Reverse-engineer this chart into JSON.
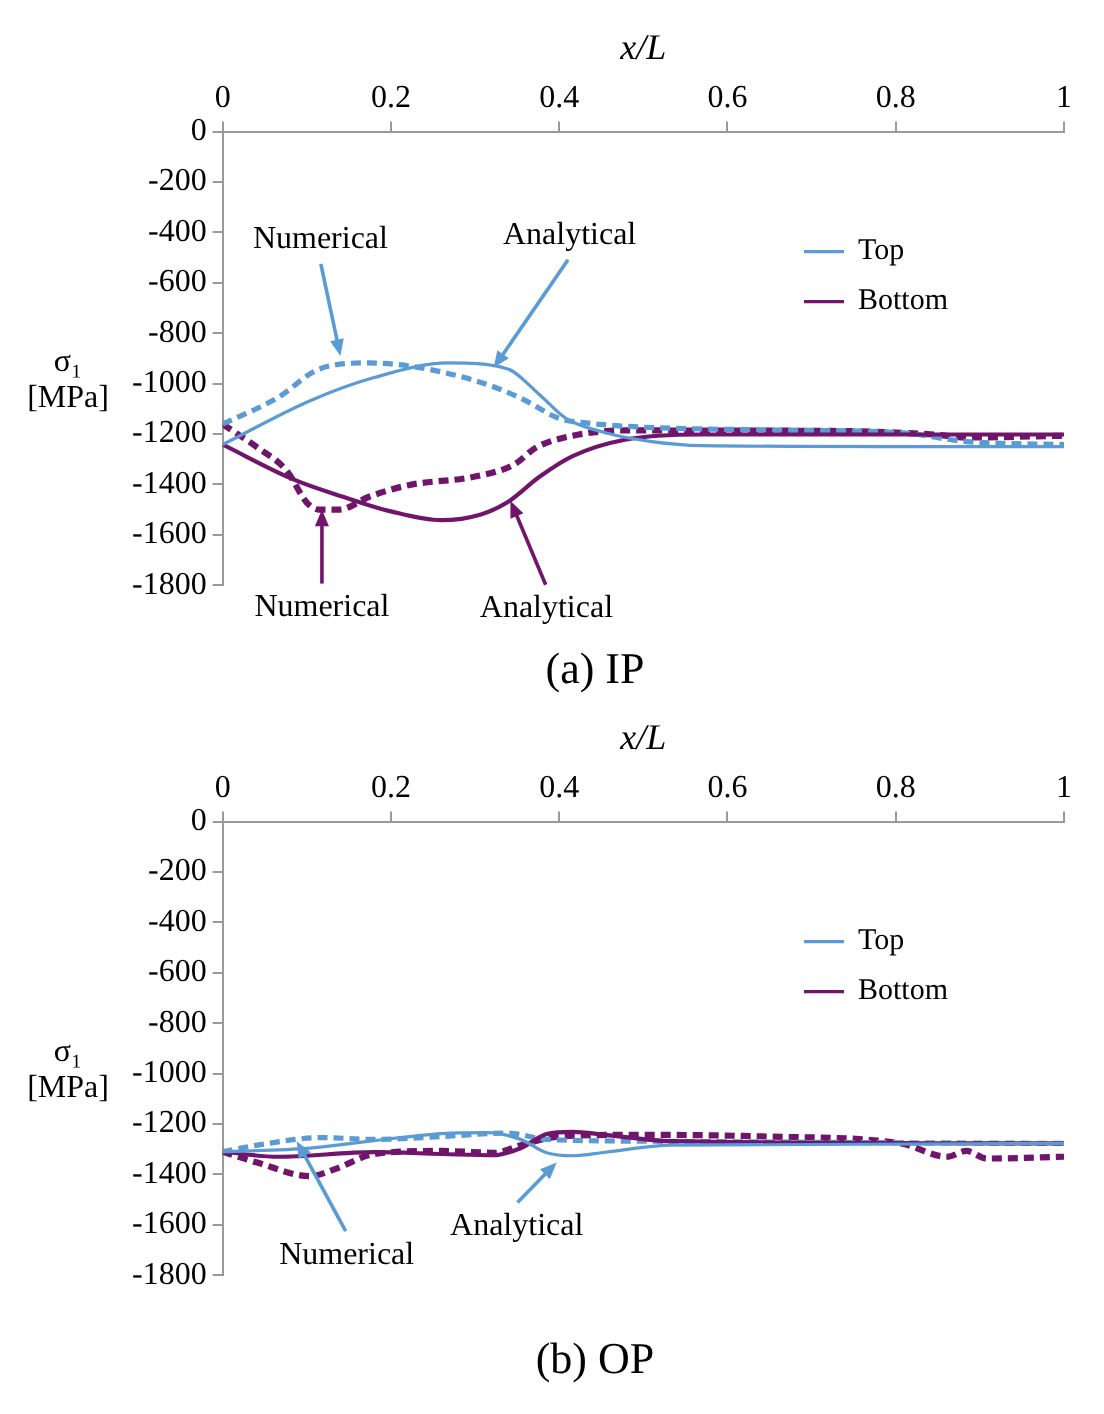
{
  "chart_data": [
    {
      "type": "line",
      "title": "(a) IP",
      "xlabel": "x/L",
      "ylabel": "σ₁ [MPa]",
      "xlim": [
        0,
        1
      ],
      "xticks": [
        0,
        0.2,
        0.4,
        0.6,
        0.8,
        1
      ],
      "ylim": [
        -1800,
        0
      ],
      "yticks": [
        0,
        -200,
        -400,
        -600,
        -800,
        -1000,
        -1200,
        -1400,
        -1600,
        -1800
      ],
      "grid": false,
      "legend": "top right",
      "marker": "none",
      "series": [
        {
          "name": "Top",
          "color": "#5b9bd5",
          "line_style": "solid",
          "x": [
            0,
            0.104,
            0.18,
            0.268,
            0.338,
            0.377,
            0.408,
            0.455,
            0.51,
            0.57,
            0.8,
            1
          ],
          "values": [
            -1242,
            -1068,
            -976,
            -918,
            -941,
            -1045,
            -1138,
            -1195,
            -1230,
            -1246,
            -1250,
            -1250
          ]
        },
        {
          "name": "Bottom",
          "color": "#70156b",
          "line_style": "solid",
          "x": [
            0,
            0.084,
            0.143,
            0.2,
            0.26,
            0.307,
            0.338,
            0.377,
            0.416,
            0.478,
            0.57,
            0.8,
            1
          ],
          "values": [
            -1242,
            -1380,
            -1449,
            -1507,
            -1542,
            -1519,
            -1472,
            -1369,
            -1288,
            -1223,
            -1202,
            -1202,
            -1202
          ]
        },
        {
          "color": "#5b9bd5",
          "line_style": "dashed",
          "x": [
            0,
            0.065,
            0.115,
            0.174,
            0.221,
            0.3,
            0.354,
            0.4,
            0.432,
            0.494,
            0.65,
            0.806,
            0.884,
            1
          ],
          "values": [
            -1161,
            -1057,
            -942,
            -918,
            -930,
            -988,
            -1057,
            -1138,
            -1156,
            -1172,
            -1184,
            -1195,
            -1230,
            -1242
          ]
        },
        {
          "color": "#70156b",
          "line_style": "dashed",
          "x": [
            0,
            0.041,
            0.076,
            0.1,
            0.115,
            0.139,
            0.174,
            0.221,
            0.3,
            0.346,
            0.373,
            0.416,
            0.478,
            0.728,
            0.845,
            0.884,
            1
          ],
          "values": [
            -1161,
            -1253,
            -1345,
            -1472,
            -1500,
            -1500,
            -1449,
            -1403,
            -1369,
            -1322,
            -1253,
            -1207,
            -1186,
            -1188,
            -1202,
            -1214,
            -1207
          ]
        }
      ],
      "annotations": [
        {
          "text": "Numerical",
          "x": 0.14,
          "y": -890
        },
        {
          "text": "Analytical",
          "x": 0.322,
          "y": -937
        },
        {
          "text": "Numerical",
          "x": 0.118,
          "y": -1500
        },
        {
          "text": "Analytical",
          "x": 0.342,
          "y": -1465
        }
      ]
    },
    {
      "type": "line",
      "title": "(b) OP",
      "xlabel": "x/L",
      "ylabel": "σ₁ [MPa]",
      "xlim": [
        0,
        1
      ],
      "xticks": [
        0,
        0.2,
        0.4,
        0.6,
        0.8,
        1
      ],
      "ylim": [
        -1800,
        0
      ],
      "yticks": [
        0,
        -200,
        -400,
        -600,
        -800,
        -1000,
        -1200,
        -1400,
        -1600,
        -1800
      ],
      "grid": false,
      "legend": "top right",
      "marker": "none",
      "series": [
        {
          "name": "Top",
          "color": "#5b9bd5",
          "line_style": "solid",
          "x": [
            0,
            0.104,
            0.18,
            0.26,
            0.315,
            0.354,
            0.385,
            0.416,
            0.455,
            0.533,
            1
          ],
          "values": [
            -1310,
            -1296,
            -1266,
            -1238,
            -1234,
            -1261,
            -1314,
            -1326,
            -1312,
            -1284,
            -1277
          ]
        },
        {
          "name": "Bottom",
          "color": "#70156b",
          "line_style": "solid",
          "x": [
            0,
            0.065,
            0.18,
            0.26,
            0.322,
            0.354,
            0.385,
            0.416,
            0.455,
            0.533,
            1
          ],
          "values": [
            -1310,
            -1330,
            -1312,
            -1319,
            -1324,
            -1296,
            -1240,
            -1231,
            -1243,
            -1268,
            -1277
          ]
        },
        {
          "color": "#5b9bd5",
          "line_style": "dashed",
          "x": [
            0,
            0.041,
            0.119,
            0.18,
            0.26,
            0.338,
            0.385,
            0.494,
            0.728,
            1
          ],
          "values": [
            -1310,
            -1284,
            -1254,
            -1261,
            -1250,
            -1236,
            -1261,
            -1268,
            -1273,
            -1277
          ]
        },
        {
          "color": "#70156b",
          "line_style": "dashed",
          "x": [
            0,
            0.041,
            0.104,
            0.135,
            0.18,
            0.26,
            0.322,
            0.361,
            0.4,
            0.494,
            0.65,
            0.806,
            0.861,
            0.884,
            0.908,
            1
          ],
          "values": [
            -1310,
            -1353,
            -1407,
            -1377,
            -1319,
            -1307,
            -1314,
            -1277,
            -1250,
            -1243,
            -1250,
            -1277,
            -1330,
            -1307,
            -1337,
            -1330
          ]
        }
      ],
      "annotations": [
        {
          "text": "Numerical",
          "x": 0.088,
          "y": -1268
        },
        {
          "text": "Analytical",
          "x": 0.397,
          "y": -1353
        }
      ]
    }
  ]
}
